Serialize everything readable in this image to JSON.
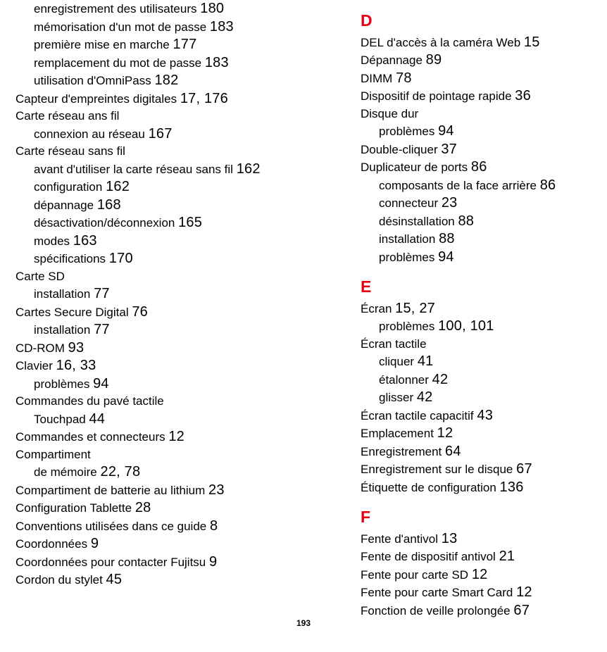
{
  "pageNumber": "193",
  "colors": {
    "accent": "#e60012",
    "text": "#000000",
    "background": "#ffffff"
  },
  "left": [
    {
      "t": "entry indent",
      "text": "enregistrement des utilisateurs",
      "pages": "180"
    },
    {
      "t": "entry indent",
      "text": "mémorisation d'un mot de passe",
      "pages": "183"
    },
    {
      "t": "entry indent",
      "text": "première mise en marche",
      "pages": "177"
    },
    {
      "t": "entry indent",
      "text": "remplacement du mot de passe",
      "pages": "183"
    },
    {
      "t": "entry indent",
      "text": "utilisation d'OmniPass",
      "pages": "182"
    },
    {
      "t": "entry",
      "text": "Capteur d'empreintes digitales",
      "pages": "17, 176"
    },
    {
      "t": "entry",
      "text": "Carte réseau ans fil",
      "pages": ""
    },
    {
      "t": "entry indent",
      "text": "connexion au réseau",
      "pages": "167"
    },
    {
      "t": "entry",
      "text": "Carte réseau sans fil",
      "pages": ""
    },
    {
      "t": "entry indent",
      "text": "avant d'utiliser la carte réseau sans fil",
      "pages": "162"
    },
    {
      "t": "entry indent",
      "text": "configuration",
      "pages": "162"
    },
    {
      "t": "entry indent",
      "text": "dépannage",
      "pages": "168"
    },
    {
      "t": "entry indent",
      "text": "désactivation/déconnexion",
      "pages": "165"
    },
    {
      "t": "entry indent",
      "text": "modes",
      "pages": "163"
    },
    {
      "t": "entry indent",
      "text": "spécifications",
      "pages": "170"
    },
    {
      "t": "entry",
      "text": "Carte SD",
      "pages": ""
    },
    {
      "t": "entry indent",
      "text": "installation",
      "pages": "77"
    },
    {
      "t": "entry",
      "text": "Cartes Secure Digital",
      "pages": "76"
    },
    {
      "t": "entry indent",
      "text": "installation",
      "pages": "77"
    },
    {
      "t": "entry",
      "text": "CD-ROM",
      "pages": "93"
    },
    {
      "t": "entry",
      "text": "Clavier",
      "pages": "16, 33"
    },
    {
      "t": "entry indent",
      "text": "problèmes",
      "pages": "94"
    },
    {
      "t": "entry",
      "text": "Commandes du pavé tactile",
      "pages": ""
    },
    {
      "t": "entry indent",
      "text": "Touchpad",
      "pages": "44"
    },
    {
      "t": "entry",
      "text": "Commandes et connecteurs",
      "pages": "12"
    },
    {
      "t": "entry",
      "text": "Compartiment",
      "pages": ""
    },
    {
      "t": "entry indent",
      "text": "de mémoire",
      "pages": "22, 78"
    },
    {
      "t": "entry",
      "text": "Compartiment de batterie au lithium",
      "pages": "23"
    },
    {
      "t": "entry",
      "text": "Configuration Tablette",
      "pages": "28"
    },
    {
      "t": "entry",
      "text": "Conventions utilisées dans ce guide",
      "pages": "8"
    },
    {
      "t": "entry",
      "text": "Coordonnées",
      "pages": "9"
    },
    {
      "t": "entry",
      "text": "Coordonnées pour contacter Fujitsu",
      "pages": "9"
    },
    {
      "t": "entry",
      "text": "Cordon du stylet",
      "pages": "45"
    }
  ],
  "right": [
    {
      "t": "letter",
      "text": "D"
    },
    {
      "t": "entry",
      "text": "DEL d'accès à la caméra Web",
      "pages": "15"
    },
    {
      "t": "entry",
      "text": "Dépannage",
      "pages": "89"
    },
    {
      "t": "entry",
      "text": "DIMM",
      "pages": "78"
    },
    {
      "t": "entry",
      "text": "Dispositif de pointage rapide",
      "pages": "36"
    },
    {
      "t": "entry",
      "text": "Disque dur",
      "pages": ""
    },
    {
      "t": "entry indent",
      "text": "problèmes",
      "pages": "94"
    },
    {
      "t": "entry",
      "text": "Double-cliquer",
      "pages": "37"
    },
    {
      "t": "entry",
      "text": "Duplicateur de ports",
      "pages": "86"
    },
    {
      "t": "entry indent",
      "text": "composants de la face arrière",
      "pages": "86"
    },
    {
      "t": "entry indent",
      "text": "connecteur",
      "pages": "23"
    },
    {
      "t": "entry indent",
      "text": "désinstallation",
      "pages": "88"
    },
    {
      "t": "entry indent",
      "text": "installation",
      "pages": "88"
    },
    {
      "t": "entry indent",
      "text": "problèmes",
      "pages": "94"
    },
    {
      "t": "letter",
      "text": "E"
    },
    {
      "t": "entry",
      "text": "Écran",
      "pages": "15, 27"
    },
    {
      "t": "entry indent",
      "text": "problèmes",
      "pages": "100, 101"
    },
    {
      "t": "entry",
      "text": "Écran tactile",
      "pages": ""
    },
    {
      "t": "entry indent",
      "text": "cliquer",
      "pages": "41"
    },
    {
      "t": "entry indent",
      "text": "étalonner",
      "pages": "42"
    },
    {
      "t": "entry indent",
      "text": "glisser",
      "pages": "42"
    },
    {
      "t": "entry",
      "text": "Écran tactile capacitif",
      "pages": "43"
    },
    {
      "t": "entry",
      "text": "Emplacement",
      "pages": "12"
    },
    {
      "t": "entry",
      "text": "Enregistrement",
      "pages": "64"
    },
    {
      "t": "entry",
      "text": "Enregistrement sur le disque",
      "pages": "67"
    },
    {
      "t": "entry",
      "text": "Étiquette de configuration",
      "pages": "136"
    },
    {
      "t": "letter",
      "text": "F"
    },
    {
      "t": "entry",
      "text": "Fente d'antivol",
      "pages": "13"
    },
    {
      "t": "entry",
      "text": "Fente de dispositif antivol",
      "pages": "21"
    },
    {
      "t": "entry",
      "text": "Fente pour carte SD",
      "pages": "12"
    },
    {
      "t": "entry",
      "text": "Fente pour carte Smart Card",
      "pages": "12"
    },
    {
      "t": "entry",
      "text": "Fonction de veille prolongée",
      "pages": "67"
    }
  ]
}
